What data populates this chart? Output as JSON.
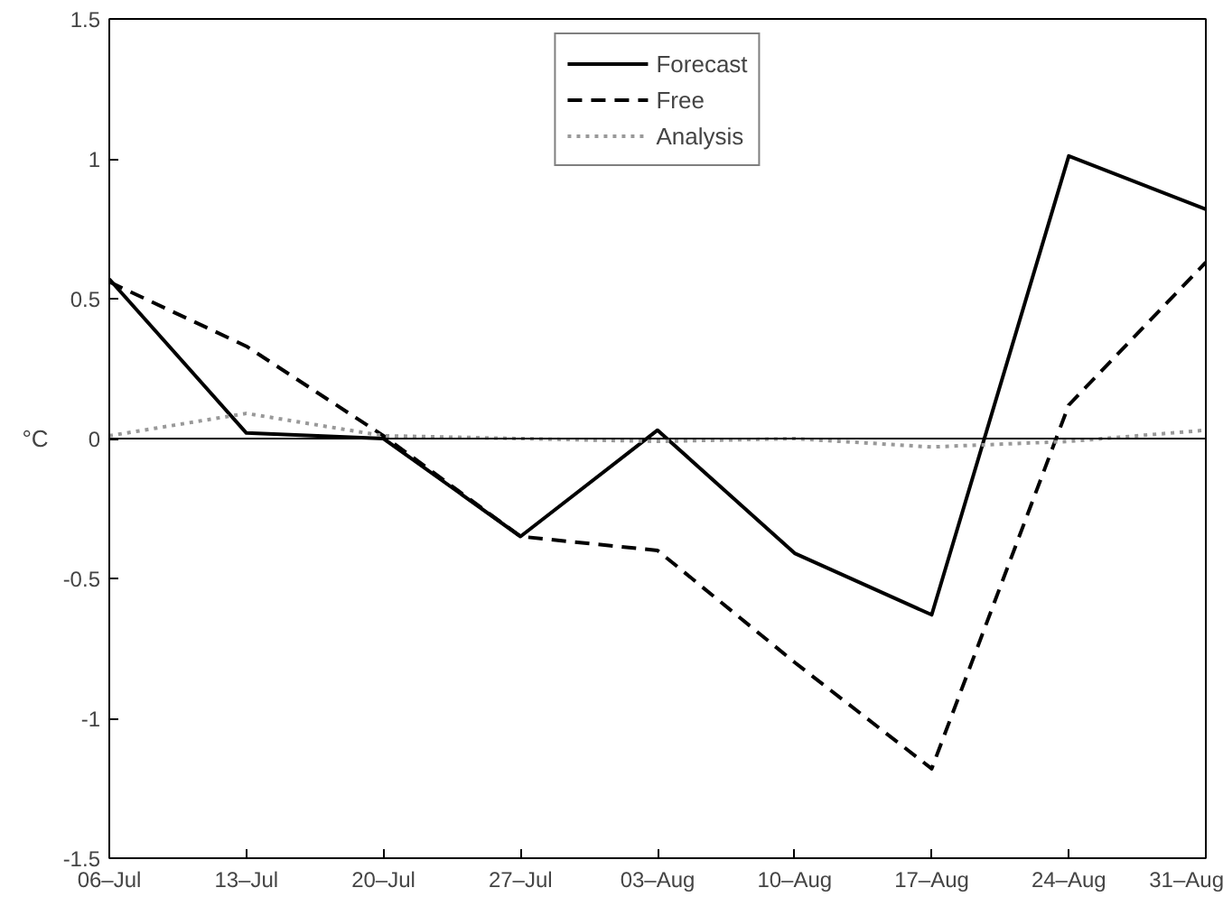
{
  "chart_data": {
    "type": "line",
    "ylabel": "°C",
    "categories": [
      "06–Jul",
      "13–Jul",
      "20–Jul",
      "27–Jul",
      "03–Aug",
      "10–Aug",
      "17–Aug",
      "24–Aug",
      "31–Aug"
    ],
    "series": [
      {
        "name": "Forecast",
        "color": "#000000",
        "line_style": "solid",
        "values": [
          0.57,
          0.02,
          0.0,
          -0.35,
          0.03,
          -0.41,
          -0.63,
          1.01,
          0.82
        ]
      },
      {
        "name": "Free",
        "color": "#000000",
        "line_style": "dashed",
        "values": [
          0.56,
          0.33,
          0.01,
          -0.35,
          -0.4,
          -0.8,
          -1.18,
          0.12,
          0.63
        ]
      },
      {
        "name": "Analysis",
        "color": "#999999",
        "line_style": "dotted",
        "values": [
          0.01,
          0.09,
          0.01,
          0.0,
          -0.01,
          0.0,
          -0.03,
          -0.01,
          0.03
        ]
      }
    ],
    "ylim": [
      -1.5,
      1.5
    ],
    "yticks": [
      -1.5,
      -1,
      -0.5,
      0,
      0.5,
      1,
      1.5
    ],
    "ref_lines": [
      {
        "axis": "y",
        "value": 0,
        "color": "#000000",
        "line_style": "solid"
      }
    ],
    "grid": false,
    "legend": "top",
    "marker": "none"
  }
}
